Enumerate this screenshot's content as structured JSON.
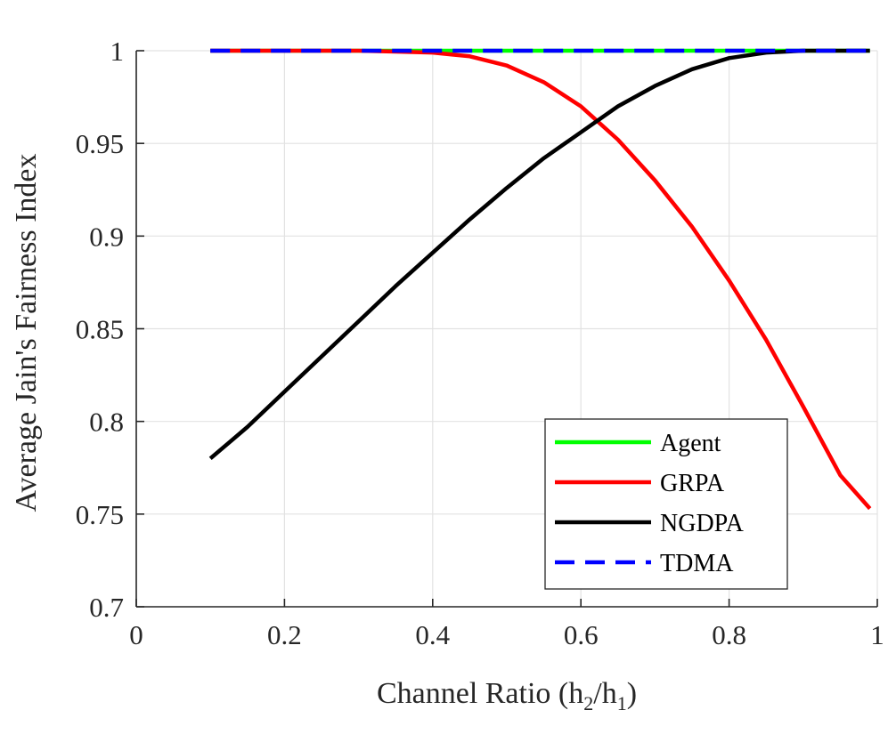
{
  "chart_data": {
    "type": "line",
    "title": "",
    "xlabel": "Channel Ratio (h",
    "xlabel_sub1": "2",
    "xlabel_mid": "/h",
    "xlabel_sub2": "1",
    "xlabel_end": ")",
    "ylabel": "Average Jain's Fairness Index",
    "xlim": [
      0,
      1
    ],
    "ylim": [
      0.7,
      1.0
    ],
    "xticks": [
      0,
      0.2,
      0.4,
      0.6,
      0.8,
      1
    ],
    "xtick_labels": [
      "0",
      "0.2",
      "0.4",
      "0.6",
      "0.8",
      "1"
    ],
    "yticks": [
      0.7,
      0.75,
      0.8,
      0.85,
      0.9,
      0.95,
      1
    ],
    "ytick_labels": [
      "0.7",
      "0.75",
      "0.8",
      "0.85",
      "0.9",
      "0.95",
      "1"
    ],
    "grid": true,
    "legend_position": "bottom-right",
    "series": [
      {
        "name": "Agent",
        "color": "#00ff00",
        "style": "solid",
        "x": [
          0.1,
          0.99
        ],
        "y": [
          1.0,
          1.0
        ]
      },
      {
        "name": "GRPA",
        "color": "#ff0000",
        "style": "solid",
        "x": [
          0.1,
          0.2,
          0.3,
          0.35,
          0.4,
          0.45,
          0.5,
          0.55,
          0.6,
          0.65,
          0.7,
          0.75,
          0.8,
          0.85,
          0.9,
          0.95,
          0.99
        ],
        "y": [
          1.0,
          1.0,
          1.0,
          0.9995,
          0.999,
          0.997,
          0.992,
          0.983,
          0.97,
          0.952,
          0.93,
          0.905,
          0.876,
          0.844,
          0.808,
          0.771,
          0.753
        ]
      },
      {
        "name": "NGDPA",
        "color": "#000000",
        "style": "solid",
        "x": [
          0.1,
          0.15,
          0.2,
          0.25,
          0.3,
          0.35,
          0.4,
          0.45,
          0.5,
          0.55,
          0.6,
          0.65,
          0.7,
          0.75,
          0.8,
          0.85,
          0.9,
          0.95,
          0.99
        ],
        "y": [
          0.78,
          0.797,
          0.816,
          0.835,
          0.854,
          0.873,
          0.891,
          0.909,
          0.926,
          0.942,
          0.956,
          0.97,
          0.981,
          0.99,
          0.996,
          0.999,
          1.0,
          1.0,
          1.0
        ]
      },
      {
        "name": "TDMA",
        "color": "#0000ff",
        "style": "dashed",
        "x": [
          0.1,
          0.99
        ],
        "y": [
          1.0,
          1.0
        ]
      }
    ]
  }
}
